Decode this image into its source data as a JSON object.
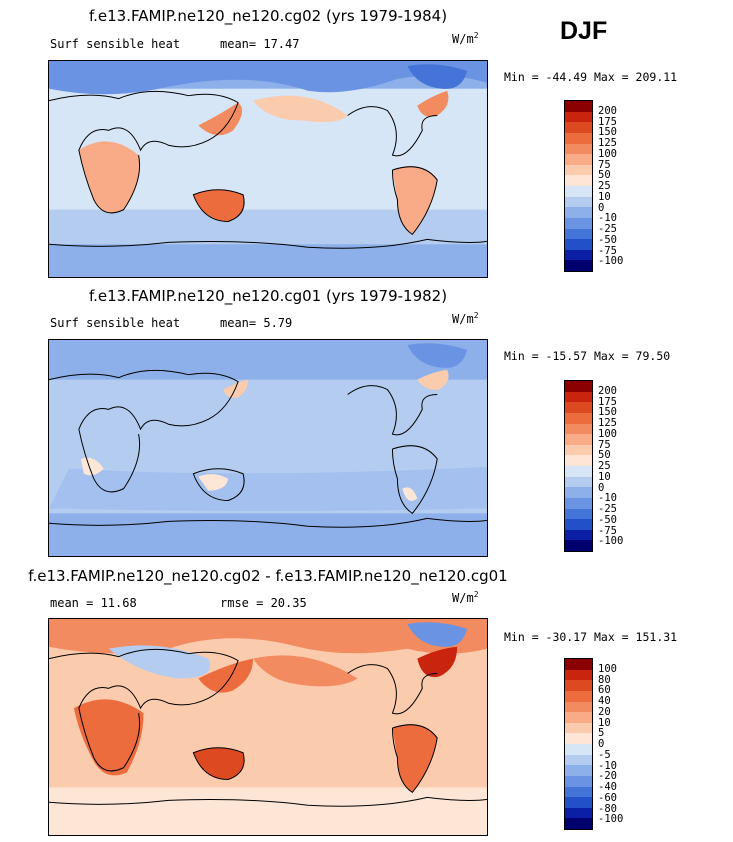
{
  "season": "DJF",
  "panels": [
    {
      "title": "f.e13.FAMIP.ne120_ne120.cg02 (yrs 1979-1984)",
      "label_left": "Surf sensible heat",
      "label_mid": "mean=  17.47",
      "units": "W/m",
      "units_exp": "2",
      "minmax": "Min = -44.49 Max = 209.11",
      "colorbar_labels": [
        "200",
        "175",
        "150",
        "125",
        "100",
        "75",
        "50",
        "25",
        "10",
        "0",
        "-10",
        "-25",
        "-50",
        "-75",
        "-100"
      ],
      "colorbar_colors": [
        "#8b0000",
        "#c8240e",
        "#dd4a21",
        "#ec6c3e",
        "#f38b60",
        "#f8ab86",
        "#fbcbad",
        "#fde6d6",
        "#d7e6f7",
        "#b3ccf0",
        "#8db0ea",
        "#6a94e3",
        "#4474d8",
        "#2250c8",
        "#0a1ea6",
        "#00006e"
      ]
    },
    {
      "title": "f.e13.FAMIP.ne120_ne120.cg01 (yrs 1979-1982)",
      "label_left": "Surf sensible heat",
      "label_mid": "mean=   5.79",
      "units": "W/m",
      "units_exp": "2",
      "minmax": "Min = -15.57 Max =  79.50",
      "colorbar_labels": [
        "200",
        "175",
        "150",
        "125",
        "100",
        "75",
        "50",
        "25",
        "10",
        "0",
        "-10",
        "-25",
        "-50",
        "-75",
        "-100"
      ],
      "colorbar_colors": [
        "#8b0000",
        "#c8240e",
        "#dd4a21",
        "#ec6c3e",
        "#f38b60",
        "#f8ab86",
        "#fbcbad",
        "#fde6d6",
        "#d7e6f7",
        "#b3ccf0",
        "#8db0ea",
        "#6a94e3",
        "#4474d8",
        "#2250c8",
        "#0a1ea6",
        "#00006e"
      ]
    },
    {
      "title": "f.e13.FAMIP.ne120_ne120.cg02 - f.e13.FAMIP.ne120_ne120.cg01",
      "label_left": "mean =  11.68",
      "label_mid": "rmse =  20.35",
      "units": "W/m",
      "units_exp": "2",
      "minmax": "Min = -30.17 Max = 151.31",
      "colorbar_labels": [
        "100",
        "80",
        "60",
        "40",
        "20",
        "10",
        "5",
        "0",
        "-5",
        "-10",
        "-20",
        "-40",
        "-60",
        "-80",
        "-100"
      ],
      "colorbar_colors": [
        "#8b0000",
        "#c8240e",
        "#dd4a21",
        "#ec6c3e",
        "#f38b60",
        "#f8ab86",
        "#fbcbad",
        "#fde6d6",
        "#d7e6f7",
        "#b3ccf0",
        "#8db0ea",
        "#6a94e3",
        "#4474d8",
        "#2250c8",
        "#0a1ea6",
        "#00006e"
      ]
    }
  ]
}
